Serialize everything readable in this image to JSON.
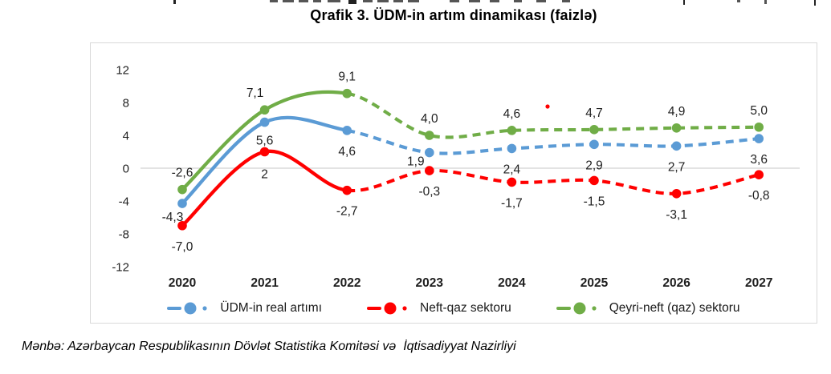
{
  "page": {
    "title": "Qrafik 3. ÜDM-in artım dinamikası (faizlə)",
    "source_note": "Mənbə: Azərbaycan Respublikasının Dövlət Statistika Komitəsi və  İqtisadiyyat Nazirliyi"
  },
  "chart_data": {
    "type": "line",
    "title": "Qrafik 3. ÜDM-in artım dinamikası (faizlə)",
    "categories": [
      "2020",
      "2021",
      "2022",
      "2023",
      "2024",
      "2025",
      "2026",
      "2027"
    ],
    "y_ticks": [
      12,
      8,
      4,
      0,
      -4,
      -8,
      -12
    ],
    "ylim": [
      -12,
      12
    ],
    "grid": "zero-line-only",
    "legend_position": "bottom",
    "line_style": "solid 2020-2022, dashed 2022-2027 (forecast)",
    "solid_until_index": 2,
    "series": [
      {
        "name": "ÜDM-in real artımı",
        "color": "#5B9BD5",
        "values": [
          -4.3,
          5.6,
          4.6,
          1.9,
          2.4,
          2.9,
          2.7,
          3.6
        ],
        "labels": [
          "-4,3",
          "5,6",
          "4,6",
          "1,9",
          "2,4",
          "2,9",
          "2,7",
          "3,6"
        ]
      },
      {
        "name": "Neft-qaz sektoru",
        "color": "#FF0000",
        "values": [
          -7.0,
          2,
          -2.7,
          -0.3,
          -1.7,
          -1.5,
          -3.1,
          -0.8
        ],
        "labels": [
          "-7,0",
          "2",
          "-2,7",
          "-0,3",
          "-1,7",
          "-1,5",
          "-3,1",
          "-0,8"
        ]
      },
      {
        "name": "Qeyri-neft (qaz) sektoru",
        "color": "#70AD47",
        "values": [
          -2.6,
          7.1,
          9.1,
          4.0,
          4.6,
          4.7,
          4.9,
          5.0
        ],
        "labels": [
          "-2,6",
          "7,1",
          "9,1",
          "4,0",
          "4,6",
          "4,7",
          "4,9",
          "5,0"
        ]
      }
    ],
    "stray_red_dot": {
      "near_category": "2024",
      "near_label": "4,6",
      "color": "#FF0000"
    }
  }
}
